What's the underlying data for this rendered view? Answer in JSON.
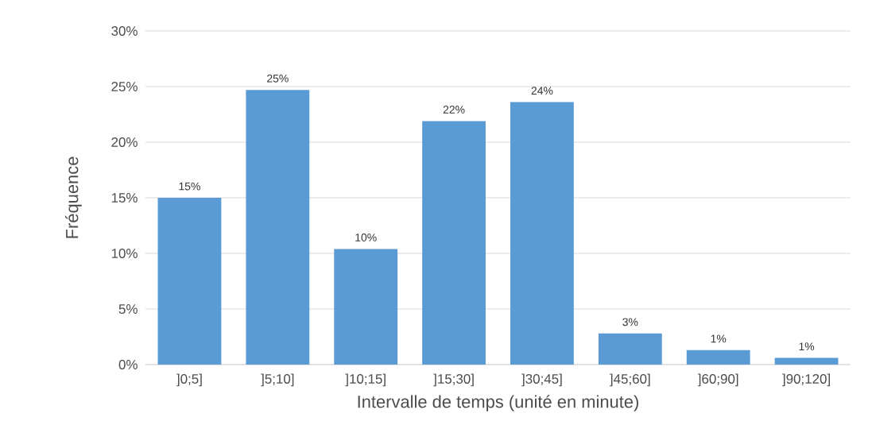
{
  "chart_data": {
    "type": "bar",
    "xlabel": "Intervalle de temps (unité en minute)",
    "ylabel": "Fréquence",
    "categories": [
      "]0;5]",
      "]5;10]",
      "]10;15]",
      "]15;30]",
      "]30;45]",
      "]45;60]",
      "]60;90]",
      "]90;120]"
    ],
    "values": [
      15.0,
      24.7,
      10.4,
      21.9,
      23.6,
      2.8,
      1.3,
      0.6
    ],
    "value_labels": [
      "15%",
      "25%",
      "10%",
      "22%",
      "24%",
      "3%",
      "1%",
      "1%"
    ],
    "color": "#5b9bd5",
    "ylim": [
      0,
      30
    ],
    "yticks": [
      {
        "value": 0,
        "label": "0%"
      },
      {
        "value": 5,
        "label": "5%"
      },
      {
        "value": 10,
        "label": "10%"
      },
      {
        "value": 15,
        "label": "15%"
      },
      {
        "value": 20,
        "label": "20%"
      },
      {
        "value": 25,
        "label": "25%"
      },
      {
        "value": 30,
        "label": "30%"
      }
    ],
    "grid": "y"
  }
}
